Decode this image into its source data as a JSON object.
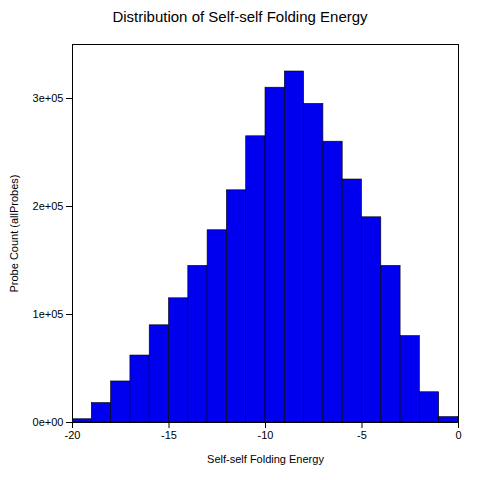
{
  "chart_data": {
    "type": "histogram",
    "title": "Distribution of Self-self Folding Energy",
    "xlabel": "Self-self Folding Energy",
    "ylabel": "Probe Count (allProbes)",
    "bins": [
      -20,
      -19,
      -18,
      -17,
      -16,
      -15,
      -14,
      -13,
      -12,
      -11,
      -10,
      -9,
      -8,
      -7,
      -6,
      -5,
      -4,
      -3,
      -2,
      -1,
      0
    ],
    "values": [
      3000,
      18000,
      38000,
      62000,
      90000,
      115000,
      145000,
      178000,
      215000,
      265000,
      310000,
      325000,
      295000,
      260000,
      225000,
      190000,
      145000,
      80000,
      28000,
      5000
    ],
    "color": "#0000EE",
    "xlim": [
      -20,
      0
    ],
    "ylim": [
      0,
      350000
    ],
    "xticks": [
      -20,
      -15,
      -10,
      -5,
      0
    ],
    "yticks": [
      {
        "value": 0,
        "label": "0e+00"
      },
      {
        "value": 100000,
        "label": "1e+05"
      },
      {
        "value": 200000,
        "label": "2e+05"
      },
      {
        "value": 300000,
        "label": "3e+05"
      }
    ],
    "grid": false
  }
}
